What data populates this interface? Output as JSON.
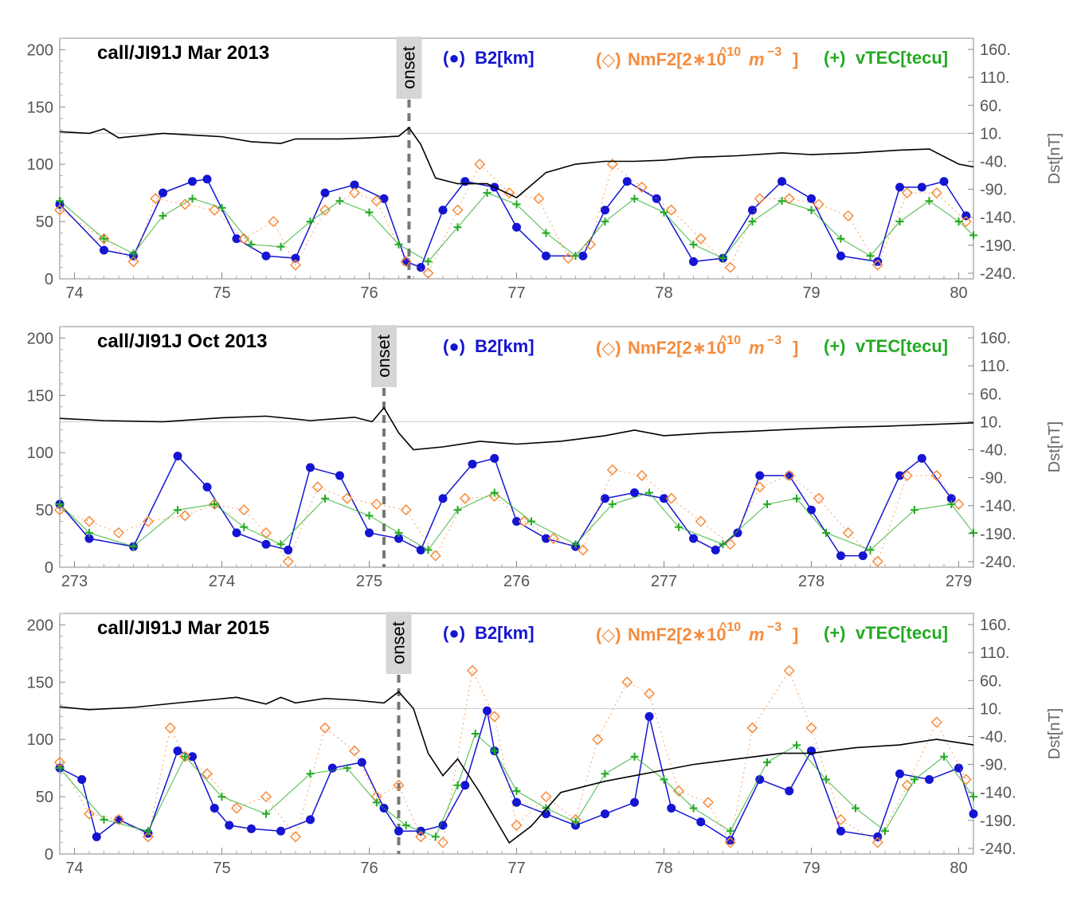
{
  "chart_data": [
    {
      "type": "line",
      "title": "call/JI91J  Mar 2013",
      "onset_label": "onset",
      "onset_day": 76.27,
      "xlim": [
        73.9,
        80.1
      ],
      "x_ticks": [
        74,
        75,
        76,
        77,
        78,
        79,
        80
      ],
      "ylim": [
        0,
        210
      ],
      "y_ticks": [
        0,
        50,
        100,
        150,
        200
      ],
      "y2label": "Dst[nT]",
      "y2lim": [
        -250,
        180
      ],
      "y2_ticks": [
        -240,
        -190,
        -140,
        -90,
        -40,
        10,
        60,
        110,
        160
      ],
      "y2_tick_labels": [
        "-240.",
        "-190.",
        "-140.",
        "-90.",
        "-40.",
        "10.",
        "60.",
        "110.",
        "160."
      ],
      "legend": [
        {
          "symbol": "(●)",
          "name": "B2[km]",
          "color": "#1414d2"
        },
        {
          "symbol": "(◇)",
          "name": "NmF2[2∗10^10m^-3]",
          "color": "#f58c3c"
        },
        {
          "symbol": "(+)",
          "name": "vTEC[tecu]",
          "color": "#22aa22"
        }
      ],
      "series": [
        {
          "name": "B2[km]",
          "axis": "left",
          "color": "#1414d2",
          "marker": "dot",
          "x": [
            73.9,
            74.2,
            74.4,
            74.6,
            74.8,
            74.9,
            75.1,
            75.3,
            75.5,
            75.7,
            75.9,
            76.1,
            76.25,
            76.35,
            76.5,
            76.65,
            76.85,
            77.0,
            77.2,
            77.45,
            77.6,
            77.75,
            77.95,
            78.2,
            78.4,
            78.6,
            78.8,
            79.0,
            79.2,
            79.45,
            79.6,
            79.75,
            79.9,
            80.05
          ],
          "y": [
            65,
            25,
            20,
            75,
            85,
            87,
            35,
            20,
            18,
            75,
            82,
            70,
            15,
            10,
            60,
            85,
            80,
            45,
            20,
            20,
            60,
            85,
            70,
            15,
            18,
            60,
            85,
            70,
            20,
            15,
            80,
            80,
            85,
            55
          ]
        },
        {
          "name": "NmF2[2*10^10 m^-3]",
          "axis": "left",
          "color": "#f58c3c",
          "marker": "diamond",
          "x": [
            73.9,
            74.2,
            74.4,
            74.55,
            74.75,
            74.95,
            75.15,
            75.35,
            75.5,
            75.7,
            75.9,
            76.05,
            76.25,
            76.4,
            76.6,
            76.75,
            76.95,
            77.15,
            77.35,
            77.5,
            77.65,
            77.85,
            78.05,
            78.25,
            78.45,
            78.65,
            78.85,
            79.05,
            79.25,
            79.45,
            79.65,
            79.85,
            80.05
          ],
          "y": [
            60,
            35,
            15,
            70,
            65,
            60,
            35,
            50,
            12,
            60,
            75,
            68,
            15,
            5,
            60,
            100,
            75,
            70,
            18,
            30,
            100,
            80,
            60,
            35,
            10,
            70,
            70,
            65,
            55,
            12,
            75,
            75,
            50
          ]
        },
        {
          "name": "vTEC[tecu]",
          "axis": "left",
          "color": "#22aa22",
          "marker": "plus",
          "x": [
            73.9,
            74.2,
            74.4,
            74.6,
            74.8,
            75.0,
            75.2,
            75.4,
            75.6,
            75.8,
            76.0,
            76.2,
            76.4,
            76.6,
            76.8,
            77.0,
            77.2,
            77.4,
            77.6,
            77.8,
            78.0,
            78.2,
            78.4,
            78.6,
            78.8,
            79.0,
            79.2,
            79.4,
            79.6,
            79.8,
            80.0,
            80.1
          ],
          "y": [
            68,
            35,
            22,
            55,
            70,
            62,
            30,
            28,
            50,
            68,
            58,
            30,
            15,
            45,
            75,
            65,
            40,
            20,
            50,
            70,
            58,
            30,
            18,
            50,
            68,
            60,
            35,
            20,
            50,
            68,
            50,
            38
          ]
        },
        {
          "name": "Dst[nT]",
          "axis": "right",
          "color": "#000000",
          "marker": "none",
          "x": [
            73.9,
            74.1,
            74.2,
            74.3,
            74.6,
            75.0,
            75.2,
            75.4,
            75.5,
            75.8,
            76.0,
            76.2,
            76.27,
            76.35,
            76.45,
            76.6,
            76.8,
            77.0,
            77.2,
            77.4,
            77.6,
            77.8,
            78.0,
            78.2,
            78.5,
            78.8,
            79.0,
            79.3,
            79.6,
            79.8,
            80.0,
            80.1
          ],
          "y": [
            13,
            10,
            18,
            2,
            10,
            4,
            -5,
            -8,
            0,
            0,
            2,
            5,
            20,
            -10,
            -70,
            -80,
            -80,
            -105,
            -60,
            -45,
            -40,
            -40,
            -38,
            -33,
            -30,
            -25,
            -28,
            -25,
            -20,
            -18,
            -45,
            -50
          ]
        }
      ]
    },
    {
      "type": "line",
      "title": "call/JI91J  Oct 2013",
      "onset_label": "onset",
      "onset_day": 275.1,
      "xlim": [
        272.9,
        279.1
      ],
      "x_ticks": [
        273,
        274,
        275,
        276,
        277,
        278,
        279
      ],
      "ylim": [
        0,
        210
      ],
      "y_ticks": [
        0,
        50,
        100,
        150,
        200
      ],
      "y2label": "Dst[nT]",
      "y2lim": [
        -250,
        180
      ],
      "y2_ticks": [
        -240,
        -190,
        -140,
        -90,
        -40,
        10,
        60,
        110,
        160
      ],
      "y2_tick_labels": [
        "-240.",
        "-190.",
        "-140.",
        "-90.",
        "-40.",
        "10.",
        "60.",
        "110.",
        "160."
      ],
      "legend": [
        {
          "symbol": "(●)",
          "name": "B2[km]",
          "color": "#1414d2"
        },
        {
          "symbol": "(◇)",
          "name": "NmF2[2∗10^10m^-3]",
          "color": "#f58c3c"
        },
        {
          "symbol": "(+)",
          "name": "vTEC[tecu]",
          "color": "#22aa22"
        }
      ],
      "series": [
        {
          "name": "B2[km]",
          "axis": "left",
          "color": "#1414d2",
          "marker": "dot",
          "x": [
            272.9,
            273.1,
            273.4,
            273.7,
            273.9,
            274.1,
            274.3,
            274.45,
            274.6,
            274.8,
            275.0,
            275.2,
            275.35,
            275.5,
            275.7,
            275.85,
            276.0,
            276.2,
            276.4,
            276.6,
            276.8,
            277.0,
            277.2,
            277.35,
            277.5,
            277.65,
            277.85,
            278.0,
            278.2,
            278.35,
            278.6,
            278.75,
            278.95
          ],
          "y": [
            55,
            25,
            18,
            97,
            70,
            30,
            20,
            15,
            87,
            80,
            30,
            25,
            15,
            60,
            90,
            95,
            40,
            25,
            18,
            60,
            65,
            60,
            25,
            15,
            30,
            80,
            80,
            50,
            10,
            10,
            80,
            95,
            60
          ]
        },
        {
          "name": "NmF2[2*10^10 m^-3]",
          "axis": "left",
          "color": "#f58c3c",
          "marker": "diamond",
          "x": [
            272.9,
            273.1,
            273.3,
            273.5,
            273.75,
            273.95,
            274.15,
            274.3,
            274.45,
            274.65,
            274.85,
            275.05,
            275.25,
            275.45,
            275.65,
            275.85,
            276.05,
            276.25,
            276.45,
            276.65,
            276.85,
            277.05,
            277.25,
            277.45,
            277.65,
            277.85,
            278.05,
            278.25,
            278.45,
            278.65,
            278.85,
            279.0
          ],
          "y": [
            50,
            40,
            30,
            40,
            45,
            55,
            50,
            30,
            5,
            70,
            60,
            55,
            50,
            10,
            60,
            62,
            40,
            25,
            15,
            85,
            80,
            60,
            40,
            20,
            70,
            80,
            60,
            30,
            5,
            80,
            80,
            55
          ]
        },
        {
          "name": "vTEC[tecu]",
          "axis": "left",
          "color": "#22aa22",
          "marker": "plus",
          "x": [
            272.9,
            273.1,
            273.4,
            273.7,
            273.95,
            274.15,
            274.4,
            274.7,
            275.0,
            275.2,
            275.4,
            275.6,
            275.85,
            276.1,
            276.4,
            276.65,
            276.9,
            277.1,
            277.4,
            277.7,
            277.9,
            278.1,
            278.4,
            278.7,
            278.95,
            279.1
          ],
          "y": [
            55,
            30,
            18,
            50,
            55,
            35,
            20,
            60,
            45,
            30,
            15,
            50,
            65,
            40,
            20,
            55,
            65,
            35,
            20,
            55,
            60,
            30,
            15,
            50,
            55,
            30
          ]
        },
        {
          "name": "Dst[nT]",
          "axis": "right",
          "color": "#000000",
          "marker": "none",
          "x": [
            272.9,
            273.2,
            273.6,
            274.0,
            274.3,
            274.6,
            274.9,
            275.02,
            275.1,
            275.2,
            275.3,
            275.5,
            275.75,
            276.0,
            276.3,
            276.6,
            276.8,
            277.0,
            277.3,
            277.6,
            277.9,
            278.2,
            278.5,
            278.8,
            279.1
          ],
          "y": [
            16,
            12,
            10,
            17,
            20,
            12,
            18,
            10,
            35,
            -10,
            -40,
            -35,
            -25,
            -30,
            -25,
            -15,
            -5,
            -15,
            -10,
            -7,
            -3,
            0,
            2,
            5,
            8
          ]
        }
      ]
    },
    {
      "type": "line",
      "title": "call/JI91J  Mar 2015",
      "onset_label": "onset",
      "onset_day": 76.2,
      "xlim": [
        73.9,
        80.1
      ],
      "x_ticks": [
        74,
        75,
        76,
        77,
        78,
        79,
        80
      ],
      "ylim": [
        0,
        210
      ],
      "y_ticks": [
        0,
        50,
        100,
        150,
        200
      ],
      "y2label": "Dst[nT]",
      "y2lim": [
        -250,
        180
      ],
      "y2_ticks": [
        -240,
        -190,
        -140,
        -90,
        -40,
        10,
        60,
        110,
        160
      ],
      "y2_tick_labels": [
        "-240.",
        "-190.",
        "-140.",
        "-90.",
        "-40.",
        "10.",
        "60.",
        "110.",
        "160."
      ],
      "legend": [
        {
          "symbol": "(●)",
          "name": "B2[km]",
          "color": "#1414d2"
        },
        {
          "symbol": "(◇)",
          "name": "NmF2[2∗10^10m^-3]",
          "color": "#f58c3c"
        },
        {
          "symbol": "(+)",
          "name": "vTEC[tecu]",
          "color": "#22aa22"
        }
      ],
      "series": [
        {
          "name": "B2[km]",
          "axis": "left",
          "color": "#1414d2",
          "marker": "dot",
          "x": [
            73.9,
            74.05,
            74.15,
            74.3,
            74.5,
            74.7,
            74.8,
            74.95,
            75.05,
            75.2,
            75.4,
            75.6,
            75.75,
            75.95,
            76.1,
            76.2,
            76.35,
            76.5,
            76.65,
            76.8,
            76.85,
            77.0,
            77.2,
            77.4,
            77.6,
            77.8,
            77.9,
            78.05,
            78.25,
            78.45,
            78.65,
            78.85,
            79.0,
            79.2,
            79.45,
            79.6,
            79.8,
            80.0,
            80.1
          ],
          "y": [
            75,
            65,
            15,
            30,
            18,
            90,
            85,
            40,
            25,
            22,
            20,
            30,
            75,
            80,
            40,
            20,
            20,
            25,
            60,
            125,
            90,
            45,
            35,
            25,
            35,
            45,
            120,
            40,
            28,
            12,
            65,
            55,
            90,
            20,
            15,
            70,
            65,
            75,
            35
          ]
        },
        {
          "name": "NmF2[2*10^10 m^-3]",
          "axis": "left",
          "color": "#f58c3c",
          "marker": "diamond",
          "x": [
            73.9,
            74.1,
            74.3,
            74.5,
            74.65,
            74.75,
            74.9,
            75.1,
            75.3,
            75.5,
            75.7,
            75.9,
            76.05,
            76.2,
            76.35,
            76.5,
            76.7,
            76.85,
            77.0,
            77.2,
            77.4,
            77.55,
            77.75,
            77.9,
            78.1,
            78.3,
            78.45,
            78.6,
            78.85,
            79.0,
            79.2,
            79.45,
            79.65,
            79.85,
            80.05
          ],
          "y": [
            80,
            35,
            30,
            15,
            110,
            85,
            70,
            40,
            50,
            15,
            110,
            90,
            50,
            60,
            15,
            10,
            160,
            120,
            25,
            50,
            30,
            100,
            150,
            140,
            55,
            45,
            10,
            110,
            160,
            110,
            30,
            10,
            60,
            115,
            65
          ]
        },
        {
          "name": "vTEC[tecu]",
          "axis": "left",
          "color": "#22aa22",
          "marker": "plus",
          "x": [
            73.9,
            74.2,
            74.5,
            74.75,
            75.0,
            75.3,
            75.6,
            75.85,
            76.05,
            76.25,
            76.45,
            76.6,
            76.72,
            76.85,
            77.0,
            77.2,
            77.4,
            77.6,
            77.8,
            78.0,
            78.2,
            78.45,
            78.7,
            78.9,
            79.1,
            79.3,
            79.5,
            79.7,
            79.9,
            80.1
          ],
          "y": [
            75,
            30,
            20,
            85,
            50,
            35,
            70,
            75,
            45,
            25,
            15,
            60,
            105,
            90,
            55,
            40,
            28,
            70,
            85,
            65,
            40,
            20,
            80,
            95,
            65,
            40,
            20,
            65,
            85,
            50
          ]
        },
        {
          "name": "Dst[nT]",
          "axis": "right",
          "color": "#000000",
          "marker": "none",
          "x": [
            73.9,
            74.1,
            74.4,
            74.7,
            74.9,
            75.1,
            75.3,
            75.4,
            75.5,
            75.7,
            75.9,
            76.1,
            76.2,
            76.3,
            76.4,
            76.5,
            76.6,
            76.75,
            76.85,
            76.95,
            77.1,
            77.3,
            77.6,
            77.8,
            78.0,
            78.2,
            78.5,
            78.8,
            79.0,
            79.3,
            79.6,
            79.85,
            80.1
          ],
          "y": [
            13,
            8,
            12,
            20,
            25,
            30,
            18,
            30,
            20,
            28,
            25,
            20,
            40,
            10,
            -70,
            -110,
            -80,
            -140,
            -185,
            -230,
            -200,
            -140,
            -120,
            -110,
            -100,
            -90,
            -80,
            -70,
            -70,
            -60,
            -55,
            -45,
            -55
          ]
        }
      ]
    }
  ]
}
